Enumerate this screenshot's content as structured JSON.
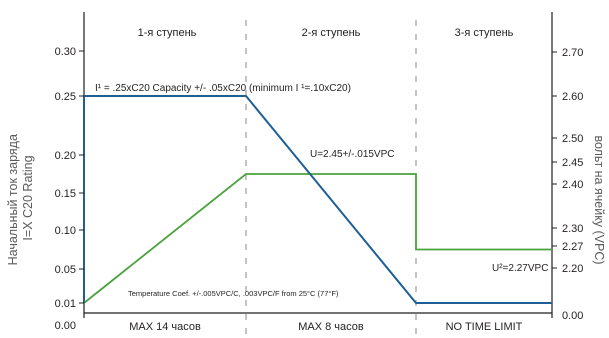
{
  "colors": {
    "current": "#1f5f96",
    "voltage": "#4aa23c",
    "axis": "#231f20",
    "divider": "#8a8a8a"
  },
  "chart_data": {
    "type": "line",
    "stages": [
      "1-я ступень",
      "2-я ступень",
      "3-я ступень"
    ],
    "durations": [
      "MAX 14 часов",
      "MAX 8 часов",
      "NO TIME LIMIT"
    ],
    "x": [
      0,
      1,
      2,
      3
    ],
    "y_left": {
      "label_lines": [
        "Начальный ток заряда",
        "I=X C20 Rating"
      ],
      "ticks": [
        {
          "label": "0.00",
          "value": 0.0
        },
        {
          "label": "0.01",
          "value": 0.01
        },
        {
          "label": "0.05",
          "value": 0.05
        },
        {
          "label": "0.10",
          "value": 0.1
        },
        {
          "label": "0.15",
          "value": 0.15
        },
        {
          "label": "0.20",
          "value": 0.2
        },
        {
          "label": "0.25",
          "value": 0.25
        },
        {
          "label": "0.30",
          "value": 0.3
        }
      ],
      "ylim": [
        0.0,
        0.35
      ]
    },
    "y_right": {
      "label": "вольт на ячейку (VPC)",
      "ticks": [
        {
          "label": "0.00",
          "value": 0.0
        },
        {
          "label": "2.20",
          "value": 2.2
        },
        {
          "label": "2.27",
          "value": 2.27
        },
        {
          "label": "2.30",
          "value": 2.3
        },
        {
          "label": "2.40",
          "value": 2.4
        },
        {
          "label": "2.45",
          "value": 2.45
        },
        {
          "label": "2.50",
          "value": 2.5
        },
        {
          "label": "2.60",
          "value": 2.6
        },
        {
          "label": "2.70",
          "value": 2.7
        }
      ]
    },
    "series": [
      {
        "key": "current",
        "points": [
          [
            0,
            0.01
          ],
          [
            0,
            0.25
          ],
          [
            1,
            0.25
          ],
          [
            2,
            0.01
          ],
          [
            3,
            0.01
          ]
        ]
      },
      {
        "key": "voltage",
        "points": [
          [
            0,
            0.01
          ],
          [
            1,
            0.175
          ],
          [
            2,
            0.175
          ],
          [
            2,
            0.075
          ],
          [
            3,
            0.075
          ]
        ]
      }
    ],
    "annotations": {
      "current_spec": "I¹ = .25xC20 Capacity +/- .05xC20 (minimum I    ¹=.10xC20)",
      "stage2_voltage": "U=2.45+/-.015VPC",
      "stage3_voltage": "U²=2.27VPC",
      "temp_coef": "Temperature Coef. +/-.005VPC/C, .003VPC/F from 25°C (77°F)"
    }
  }
}
